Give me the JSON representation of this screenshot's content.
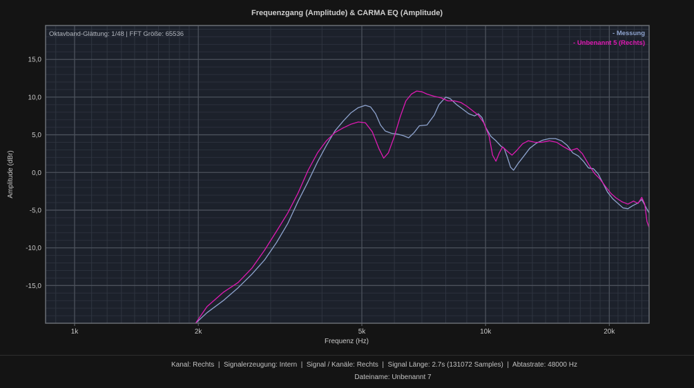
{
  "window": {
    "title": "Frequenzgang (Amplitude) & CARMA EQ (Amplitude)"
  },
  "chart_data": {
    "type": "line",
    "title": "Frequenzgang (Amplitude) & CARMA EQ (Amplitude)",
    "annotation": "Oktavband-Glättung: 1/48 | FFT Größe: 65536",
    "xlabel": "Frequenz (Hz)",
    "ylabel": "Amplitude (dBr)",
    "x_scale": "log",
    "xlim": [
      850,
      25000
    ],
    "ylim": [
      -20,
      19.5
    ],
    "grid": true,
    "legend": "top-right",
    "x_ticks": [
      {
        "value": 1000,
        "label": "1k"
      },
      {
        "value": 2000,
        "label": "2k"
      },
      {
        "value": 5000,
        "label": "5k"
      },
      {
        "value": 10000,
        "label": "10k"
      },
      {
        "value": 20000,
        "label": "20k"
      }
    ],
    "y_ticks": [
      {
        "value": 15,
        "label": "15,0"
      },
      {
        "value": 10,
        "label": "10,0"
      },
      {
        "value": 5,
        "label": "5,0"
      },
      {
        "value": 0,
        "label": "0,0"
      },
      {
        "value": -5,
        "label": "-5,0"
      },
      {
        "value": -10,
        "label": "-10,0"
      },
      {
        "value": -15,
        "label": "-15,0"
      }
    ],
    "series": [
      {
        "name": "- Messung",
        "color": "#8fa4cf",
        "points": [
          [
            1970,
            -20
          ],
          [
            2100,
            -18.6
          ],
          [
            2300,
            -17.0
          ],
          [
            2500,
            -15.3
          ],
          [
            2700,
            -13.5
          ],
          [
            2900,
            -11.6
          ],
          [
            3100,
            -9.3
          ],
          [
            3300,
            -6.8
          ],
          [
            3500,
            -3.8
          ],
          [
            3700,
            -1.2
          ],
          [
            3900,
            1.4
          ],
          [
            4100,
            3.6
          ],
          [
            4300,
            5.5
          ],
          [
            4500,
            6.8
          ],
          [
            4700,
            7.9
          ],
          [
            4900,
            8.6
          ],
          [
            5100,
            8.9
          ],
          [
            5250,
            8.7
          ],
          [
            5400,
            7.8
          ],
          [
            5550,
            6.3
          ],
          [
            5700,
            5.5
          ],
          [
            5900,
            5.2
          ],
          [
            6100,
            5.1
          ],
          [
            6300,
            4.9
          ],
          [
            6500,
            4.6
          ],
          [
            6700,
            5.3
          ],
          [
            6900,
            6.2
          ],
          [
            7200,
            6.3
          ],
          [
            7500,
            7.6
          ],
          [
            7700,
            9.0
          ],
          [
            8000,
            10.0
          ],
          [
            8200,
            9.8
          ],
          [
            8500,
            9.0
          ],
          [
            8800,
            8.4
          ],
          [
            9100,
            7.8
          ],
          [
            9400,
            7.5
          ],
          [
            9600,
            7.8
          ],
          [
            9800,
            7.3
          ],
          [
            10000,
            6.0
          ],
          [
            10300,
            4.8
          ],
          [
            10600,
            4.2
          ],
          [
            10900,
            3.5
          ],
          [
            11100,
            3.2
          ],
          [
            11300,
            2.0
          ],
          [
            11500,
            0.7
          ],
          [
            11700,
            0.3
          ],
          [
            12000,
            1.2
          ],
          [
            12400,
            2.2
          ],
          [
            12800,
            3.2
          ],
          [
            13300,
            3.9
          ],
          [
            13800,
            4.3
          ],
          [
            14300,
            4.5
          ],
          [
            14800,
            4.5
          ],
          [
            15300,
            4.2
          ],
          [
            15800,
            3.6
          ],
          [
            16300,
            2.6
          ],
          [
            16800,
            2.2
          ],
          [
            17300,
            1.5
          ],
          [
            17800,
            0.6
          ],
          [
            18300,
            0.5
          ],
          [
            18800,
            -0.2
          ],
          [
            19300,
            -1.4
          ],
          [
            19800,
            -2.6
          ],
          [
            20400,
            -3.5
          ],
          [
            21000,
            -4.1
          ],
          [
            21600,
            -4.7
          ],
          [
            22200,
            -4.8
          ],
          [
            22800,
            -4.4
          ],
          [
            23400,
            -4.1
          ],
          [
            24000,
            -3.6
          ],
          [
            24500,
            -4.5
          ],
          [
            25000,
            -5.4
          ]
        ]
      },
      {
        "name": "- Unbenannt 5 (Rechts)",
        "color": "#e01ab4",
        "points": [
          [
            1970,
            -20
          ],
          [
            2100,
            -17.8
          ],
          [
            2300,
            -15.9
          ],
          [
            2500,
            -14.6
          ],
          [
            2700,
            -12.7
          ],
          [
            2900,
            -10.3
          ],
          [
            3100,
            -7.8
          ],
          [
            3300,
            -5.4
          ],
          [
            3500,
            -2.7
          ],
          [
            3700,
            0.3
          ],
          [
            3900,
            2.6
          ],
          [
            4100,
            4.2
          ],
          [
            4300,
            5.3
          ],
          [
            4500,
            5.9
          ],
          [
            4700,
            6.4
          ],
          [
            4900,
            6.7
          ],
          [
            5100,
            6.6
          ],
          [
            5300,
            5.4
          ],
          [
            5500,
            3.2
          ],
          [
            5650,
            1.9
          ],
          [
            5800,
            2.6
          ],
          [
            6000,
            4.8
          ],
          [
            6200,
            7.4
          ],
          [
            6400,
            9.5
          ],
          [
            6600,
            10.4
          ],
          [
            6800,
            10.8
          ],
          [
            7000,
            10.7
          ],
          [
            7200,
            10.4
          ],
          [
            7500,
            10.1
          ],
          [
            7800,
            9.9
          ],
          [
            8100,
            9.5
          ],
          [
            8400,
            9.5
          ],
          [
            8700,
            9.3
          ],
          [
            9000,
            8.8
          ],
          [
            9300,
            8.2
          ],
          [
            9600,
            7.6
          ],
          [
            9900,
            6.6
          ],
          [
            10200,
            4.8
          ],
          [
            10400,
            2.3
          ],
          [
            10600,
            1.5
          ],
          [
            10800,
            2.6
          ],
          [
            11000,
            3.4
          ],
          [
            11300,
            2.8
          ],
          [
            11600,
            2.3
          ],
          [
            11900,
            2.9
          ],
          [
            12300,
            3.8
          ],
          [
            12700,
            4.2
          ],
          [
            13200,
            4.0
          ],
          [
            13700,
            4.0
          ],
          [
            14300,
            4.2
          ],
          [
            14900,
            4.0
          ],
          [
            15500,
            3.4
          ],
          [
            16100,
            2.9
          ],
          [
            16700,
            3.2
          ],
          [
            17200,
            2.5
          ],
          [
            17800,
            1.1
          ],
          [
            18400,
            -0.1
          ],
          [
            19000,
            -0.9
          ],
          [
            19600,
            -1.9
          ],
          [
            20200,
            -2.8
          ],
          [
            20800,
            -3.4
          ],
          [
            21500,
            -3.9
          ],
          [
            22200,
            -4.2
          ],
          [
            22900,
            -3.8
          ],
          [
            23500,
            -4.1
          ],
          [
            24000,
            -3.3
          ],
          [
            24400,
            -4.2
          ],
          [
            24700,
            -6.5
          ],
          [
            25000,
            -7.3
          ]
        ]
      }
    ]
  },
  "footer": {
    "info": "Kanal: Rechts  |  Signalerzeugung: Intern  |  Signal / Kanäle: Rechts  |  Signal Länge: 2.7s (131072 Samples)  |  Abtastrate: 48000 Hz",
    "filename": "Dateiname: Unbenannt 7"
  }
}
